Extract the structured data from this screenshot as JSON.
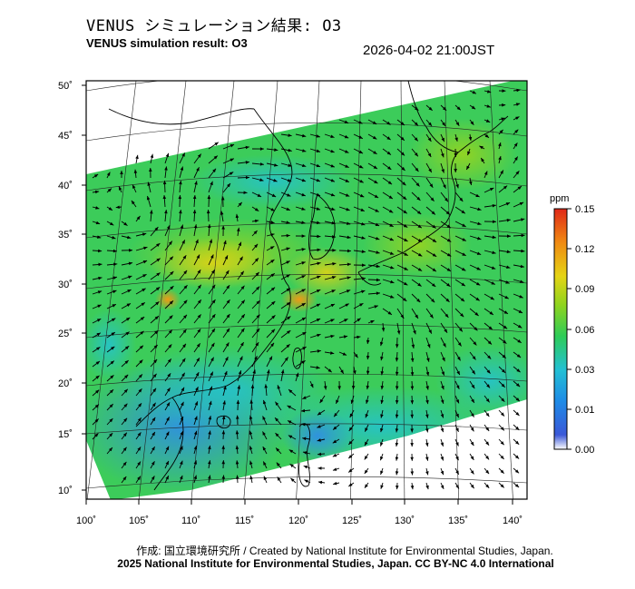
{
  "header": {
    "title_jp": "VENUS シミュレーション結果: O3",
    "title_en": "VENUS simulation result: O3",
    "timestamp": "2026-04-02 21:00JST"
  },
  "map": {
    "lat_labels": [
      "50˚",
      "45˚",
      "40˚",
      "35˚",
      "30˚",
      "25˚",
      "20˚",
      "15˚",
      "10˚"
    ],
    "lon_labels": [
      "100˚",
      "105˚",
      "110˚",
      "115˚",
      "120˚",
      "125˚",
      "130˚",
      "135˚",
      "140˚"
    ],
    "field": "O3 concentration with wind vectors",
    "region": "East Asia"
  },
  "colorbar": {
    "unit": "ppm",
    "ticks": [
      "0.15",
      "0.12",
      "0.09",
      "0.06",
      "0.03",
      "0.01",
      "0.00"
    ],
    "colors": [
      "#ffffff",
      "#1e5bd6",
      "#1f9be6",
      "#23c6c8",
      "#32cc52",
      "#7ad420",
      "#e2d215",
      "#f09012",
      "#e02818"
    ]
  },
  "footer": {
    "credit_jp": "作成: 国立環境研究所 / Created by National Institute for Environmental Studies, Japan.",
    "copyright": "2025 National Institute for Environmental Studies, Japan. CC BY-NC 4.0 International"
  }
}
